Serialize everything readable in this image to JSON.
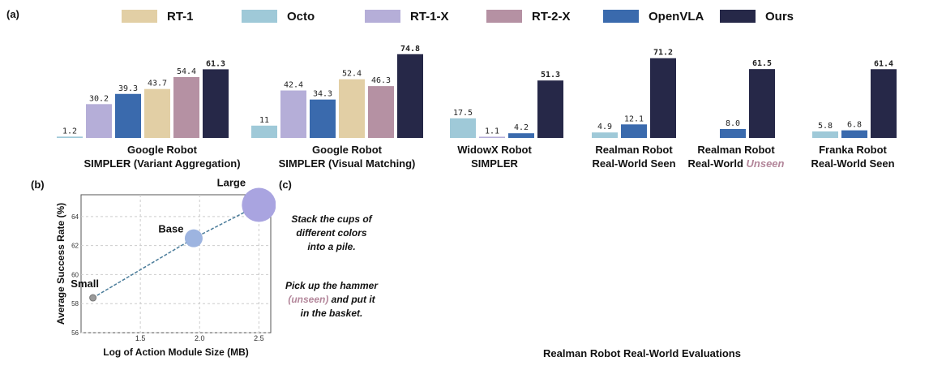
{
  "panels": {
    "a": "(a)",
    "b": "(b)",
    "c": "(c)"
  },
  "legend": [
    {
      "name": "RT-1",
      "color": "#e2cfa5"
    },
    {
      "name": "Octo",
      "color": "#9fc9d8"
    },
    {
      "name": "RT-1-X",
      "color": "#b5aed8"
    },
    {
      "name": "RT-2-X",
      "color": "#b591a3"
    },
    {
      "name": "OpenVLA",
      "color": "#3a6aad"
    },
    {
      "name": "Ours",
      "color": "#262848"
    }
  ],
  "chart_data": [
    {
      "type": "bar",
      "groups": [
        {
          "caption": [
            "Google Robot",
            "SIMPLER (Variant Aggregation)"
          ],
          "bars": [
            {
              "series": "Octo",
              "value": 1.2,
              "label": "1.2"
            },
            {
              "series": "RT-1-X",
              "value": 30.2,
              "label": "30.2"
            },
            {
              "series": "OpenVLA",
              "value": 39.3,
              "label": "39.3"
            },
            {
              "series": "RT-1",
              "value": 43.7,
              "label": "43.7"
            },
            {
              "series": "RT-2-X",
              "value": 54.4,
              "label": "54.4"
            },
            {
              "series": "Ours",
              "value": 61.3,
              "label": "61.3"
            }
          ]
        },
        {
          "caption": [
            "Google Robot",
            "SIMPLER (Visual Matching)"
          ],
          "bars": [
            {
              "series": "Octo",
              "value": 11,
              "label": "11"
            },
            {
              "series": "RT-1-X",
              "value": 42.4,
              "label": "42.4"
            },
            {
              "series": "OpenVLA",
              "value": 34.3,
              "label": "34.3"
            },
            {
              "series": "RT-1",
              "value": 52.4,
              "label": "52.4"
            },
            {
              "series": "RT-2-X",
              "value": 46.3,
              "label": "46.3"
            },
            {
              "series": "Ours",
              "value": 74.8,
              "label": "74.8"
            }
          ]
        },
        {
          "caption": [
            "WidowX Robot",
            "SIMPLER"
          ],
          "bars": [
            {
              "series": "Octo",
              "value": 17.5,
              "label": "17.5"
            },
            {
              "series": "RT-1-X",
              "value": 1.1,
              "label": "1.1"
            },
            {
              "series": "OpenVLA",
              "value": 4.2,
              "label": "4.2"
            },
            {
              "series": "Ours",
              "value": 51.3,
              "label": "51.3"
            }
          ]
        },
        {
          "caption": [
            "Realman Robot",
            "Real-World Seen"
          ],
          "bars": [
            {
              "series": "Octo",
              "value": 4.9,
              "label": "4.9"
            },
            {
              "series": "OpenVLA",
              "value": 12.1,
              "label": "12.1"
            },
            {
              "series": "Ours",
              "value": 71.2,
              "label": "71.2"
            }
          ]
        },
        {
          "caption": [
            "Realman Robot",
            "Real-World ",
            "Unseen"
          ],
          "bars": [
            {
              "series": "OpenVLA",
              "value": 8.0,
              "label": "8.0"
            },
            {
              "series": "Ours",
              "value": 61.5,
              "label": "61.5"
            }
          ]
        },
        {
          "caption": [
            "Franka Robot",
            "Real-World Seen"
          ],
          "bars": [
            {
              "series": "Octo",
              "value": 5.8,
              "label": "5.8"
            },
            {
              "series": "OpenVLA",
              "value": 6.8,
              "label": "6.8"
            },
            {
              "series": "Ours",
              "value": 61.4,
              "label": "61.4"
            }
          ]
        }
      ],
      "ylim": [
        0,
        80
      ]
    },
    {
      "type": "scatter",
      "xlabel": "Log of Action Module Size (MB)",
      "ylabel": "Average Success Rate (%)",
      "xlim": [
        1.0,
        2.6
      ],
      "ylim": [
        56,
        65.5
      ],
      "xticks": [
        "1.0",
        "1.5",
        "2.0",
        "2.5"
      ],
      "yticks": [
        "56",
        "58",
        "60",
        "62",
        "64"
      ],
      "points": [
        {
          "label": "Small",
          "x": 1.1,
          "y": 58.4
        },
        {
          "label": "Base",
          "x": 1.95,
          "y": 62.5
        },
        {
          "label": "Large",
          "x": 2.5,
          "y": 64.8
        }
      ],
      "grid": true
    }
  ],
  "tasks": [
    {
      "lines": [
        "Stack the cups of",
        "different colors",
        "into a pile."
      ]
    },
    {
      "pre": "Pick up the hammer",
      "hl": "(unseen)",
      "post": " and put it",
      "last": "in the basket."
    }
  ],
  "photo_caption": "Realman Robot Real-World Evaluations"
}
